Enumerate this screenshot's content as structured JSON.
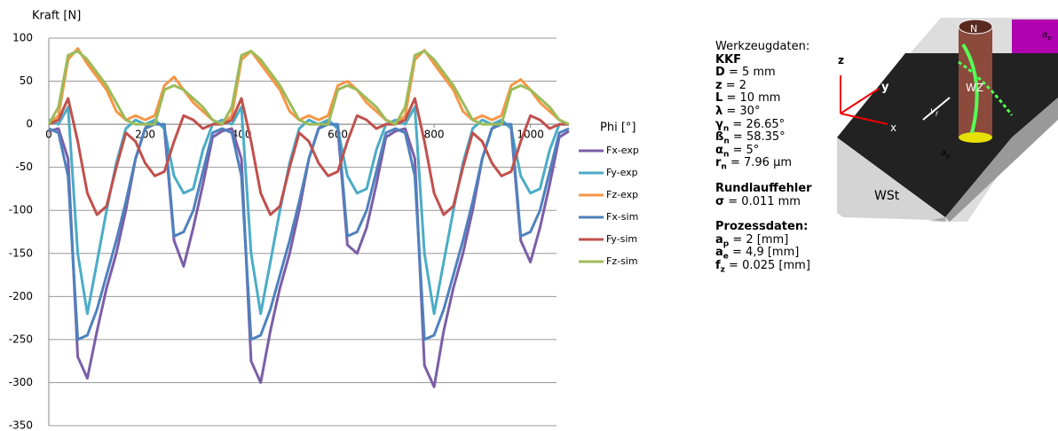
{
  "chart_data": {
    "type": "line",
    "x_label": "Phi [°]",
    "y_label": "Kraft [N]",
    "x": [
      0,
      20,
      40,
      60,
      80,
      100,
      120,
      140,
      160,
      180,
      200,
      220,
      240,
      260,
      280,
      300,
      320,
      340,
      360,
      380,
      400,
      420,
      440,
      460,
      480,
      500,
      520,
      540,
      560,
      580,
      600,
      620,
      640,
      660,
      680,
      700,
      720,
      740,
      760,
      780,
      800,
      820,
      840,
      860,
      880,
      900,
      920,
      940,
      960,
      980,
      1000,
      1020,
      1040,
      1060,
      1080
    ],
    "xlim": [
      0,
      1080
    ],
    "xticks": [
      0,
      200,
      400,
      600,
      800,
      1000
    ],
    "ylim": [
      -350,
      100
    ],
    "yticks": [
      -350,
      -300,
      -250,
      -200,
      -150,
      -100,
      -50,
      0,
      50,
      100
    ],
    "grid": true,
    "legend": "right",
    "series": [
      {
        "name": "Fx-exp",
        "color": "#7b5ea7",
        "values": [
          -8,
          -5,
          -40,
          -270,
          -295,
          -240,
          -190,
          -150,
          -100,
          -40,
          -5,
          5,
          -5,
          -135,
          -165,
          -120,
          -70,
          -15,
          -8,
          -5,
          -40,
          -275,
          -300,
          -240,
          -190,
          -150,
          -100,
          -40,
          -5,
          5,
          -5,
          -140,
          -150,
          -120,
          -70,
          -15,
          -8,
          -5,
          -40,
          -280,
          -305,
          -240,
          -190,
          -150,
          -100,
          -40,
          -5,
          5,
          -5,
          -135,
          -160,
          -120,
          -70,
          -15,
          -8
        ]
      },
      {
        "name": "Fy-exp",
        "color": "#4bacc6",
        "values": [
          5,
          0,
          20,
          -150,
          -220,
          -160,
          -100,
          -45,
          -5,
          5,
          0,
          5,
          -5,
          -60,
          -80,
          -75,
          -30,
          0,
          5,
          0,
          20,
          -150,
          -220,
          -160,
          -100,
          -45,
          -5,
          5,
          0,
          5,
          -5,
          -60,
          -80,
          -75,
          -30,
          0,
          5,
          0,
          20,
          -150,
          -220,
          -160,
          -100,
          -45,
          -5,
          5,
          0,
          5,
          -5,
          -60,
          -80,
          -75,
          -30,
          0,
          0
        ]
      },
      {
        "name": "Fz-exp",
        "color": "#f79646",
        "values": [
          0,
          10,
          75,
          88,
          70,
          55,
          40,
          15,
          5,
          10,
          5,
          10,
          45,
          55,
          40,
          25,
          15,
          5,
          0,
          10,
          75,
          85,
          70,
          55,
          40,
          15,
          5,
          10,
          5,
          10,
          45,
          50,
          40,
          25,
          15,
          5,
          0,
          10,
          75,
          86,
          70,
          55,
          40,
          15,
          5,
          10,
          5,
          10,
          45,
          52,
          40,
          25,
          15,
          5,
          0
        ]
      },
      {
        "name": "Fx-sim",
        "color": "#4f81bd",
        "values": [
          -5,
          -10,
          -60,
          -250,
          -245,
          -215,
          -175,
          -135,
          -90,
          -40,
          -5,
          0,
          0,
          -130,
          -125,
          -100,
          -55,
          -10,
          -5,
          -10,
          -60,
          -250,
          -245,
          -215,
          -175,
          -135,
          -90,
          -40,
          -5,
          0,
          0,
          -130,
          -125,
          -100,
          -55,
          -10,
          -5,
          -10,
          -60,
          -250,
          -245,
          -215,
          -175,
          -135,
          -90,
          -40,
          -5,
          0,
          0,
          -130,
          -125,
          -100,
          -55,
          -10,
          -5
        ]
      },
      {
        "name": "Fy-sim",
        "color": "#c0504d",
        "values": [
          0,
          5,
          30,
          -20,
          -80,
          -105,
          -95,
          -50,
          -10,
          -20,
          -45,
          -60,
          -55,
          -20,
          10,
          5,
          -5,
          0,
          0,
          5,
          30,
          -20,
          -80,
          -105,
          -95,
          -50,
          -10,
          -20,
          -45,
          -60,
          -55,
          -20,
          10,
          5,
          -5,
          0,
          0,
          5,
          30,
          -20,
          -80,
          -105,
          -95,
          -50,
          -10,
          -20,
          -45,
          -60,
          -55,
          -20,
          10,
          5,
          -5,
          0,
          0
        ]
      },
      {
        "name": "Fz-sim",
        "color": "#9bbb59",
        "values": [
          0,
          20,
          80,
          85,
          75,
          60,
          45,
          25,
          5,
          0,
          0,
          0,
          40,
          45,
          40,
          30,
          20,
          5,
          0,
          20,
          80,
          85,
          75,
          60,
          45,
          25,
          5,
          0,
          0,
          0,
          40,
          45,
          40,
          30,
          20,
          5,
          0,
          20,
          80,
          85,
          75,
          60,
          45,
          25,
          5,
          0,
          0,
          0,
          40,
          45,
          40,
          30,
          20,
          5,
          0
        ]
      }
    ]
  },
  "tool_panel": {
    "heading": "Werkzeugdaten:",
    "tool": "KKF",
    "params": [
      {
        "sym": "D",
        "value": "= 5 mm"
      },
      {
        "sym": "z",
        "value": "= 2"
      },
      {
        "sym": "L",
        "value": "= 10 mm"
      },
      {
        "sym": "λ",
        "value": "= 30°"
      },
      {
        "sym": "γ",
        "sub": "n",
        "value": "= 26.65°"
      },
      {
        "sym": "ß",
        "sub": "n",
        "value": "= 58.35°"
      },
      {
        "sym": "α",
        "sub": "n",
        "value": "= 5°"
      },
      {
        "sym": "r",
        "sub": "n",
        "value": "= 7.96 µm"
      }
    ],
    "runout_heading": "Rundlauffehler",
    "runout": {
      "sym": "σ",
      "value": "= 0.011 mm"
    },
    "process_heading": "Prozessdaten:",
    "process": [
      {
        "sym": "a",
        "sub": "p",
        "value": "= 2 [mm]"
      },
      {
        "sym": "a",
        "sub": "e",
        "value": "= 4,9 [mm]"
      },
      {
        "sym": "f",
        "sub": "z",
        "value": "= 0.025 [mm]"
      }
    ]
  },
  "diagram": {
    "z": "z",
    "y": "y",
    "x": "x",
    "workpiece": "WSt",
    "tool": "WZ",
    "north": "N",
    "vf": "v",
    "vf_sub": "f",
    "ap": "a",
    "ap_sub": "p",
    "ae": "a",
    "ae_sub": "e"
  }
}
